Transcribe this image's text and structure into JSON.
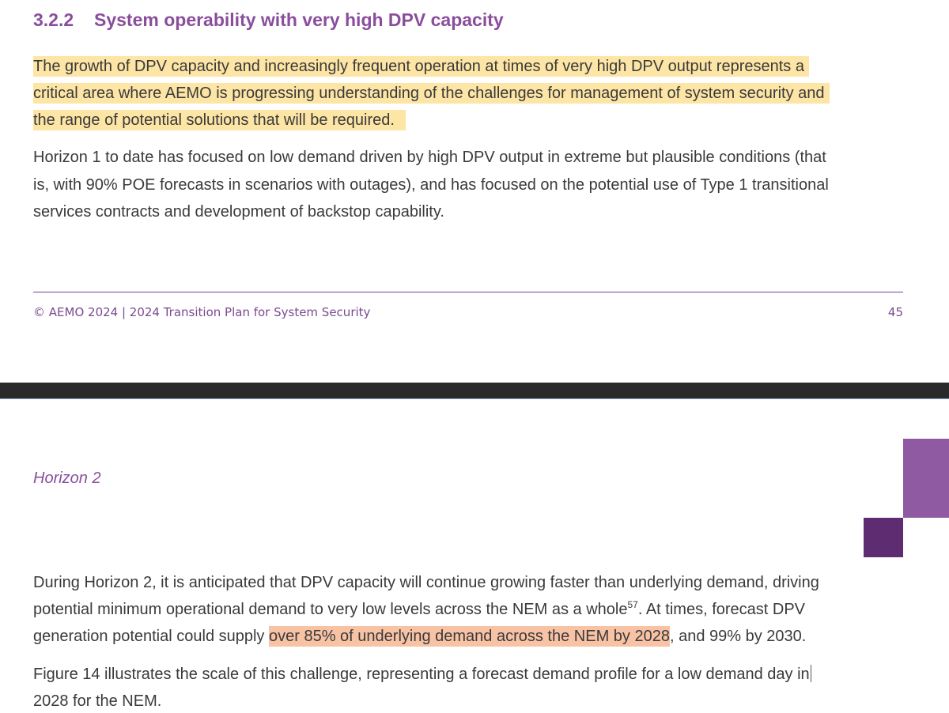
{
  "page_top": {
    "heading": {
      "number": "3.2.2",
      "title": "System operability with very high DPV capacity"
    },
    "paragraphs": [
      {
        "lines": [
          "The growth of DPV capacity and increasingly frequent operation at times of very high DPV output represents a",
          "critical area where AEMO is progressing understanding of the challenges for management of system security and",
          "the range of potential solutions that will be required."
        ]
      },
      {
        "lines": [
          "Horizon 1 to date has focused on low demand driven by high DPV output in extreme but plausible conditions (that",
          "is, with 90% POE forecasts in scenarios with outages), and has focused on the potential use of Type 1 transitional",
          "services contracts and development of backstop capability."
        ]
      }
    ],
    "footer": {
      "text": "© AEMO 2024 | 2024 Transition Plan for System Security",
      "page_number": "45"
    }
  },
  "page_bottom": {
    "subheading": "Horizon 2",
    "paragraphs": [
      {
        "lines": [
          "During Horizon 2, it is anticipated that DPV capacity will continue growing faster than underlying demand, driving",
          {
            "text": "potential minimum operational demand to very low levels across the NEM as a whole",
            "footnote": "57",
            "after": ". At times, forecast DPV"
          },
          {
            "before": "generation potential could supply ",
            "highlight": "over 85% of underlying demand across the NEM by 2028",
            "after": ", and 99% by 2030."
          }
        ]
      },
      {
        "lines": [
          "Figure 14 illustrates the scale of this challenge, representing a forecast demand profile for a low demand day in",
          "2028 for the NEM."
        ]
      }
    ]
  }
}
